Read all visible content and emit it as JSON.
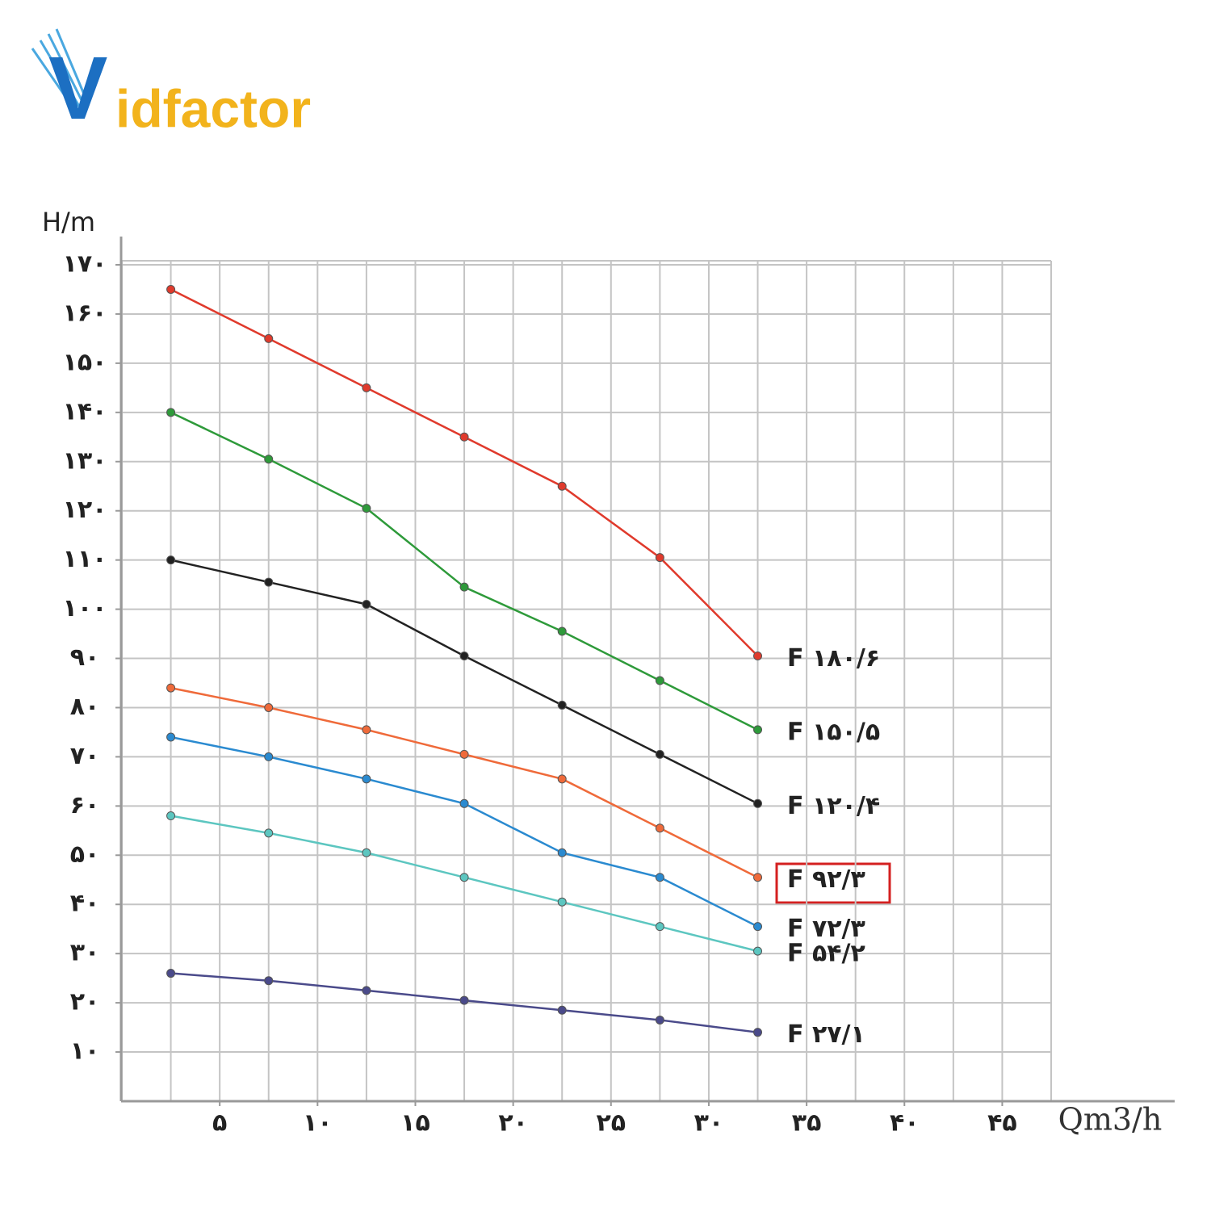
{
  "logo": {
    "mark": "V",
    "text": "idfactor"
  },
  "chart_data": {
    "type": "line",
    "y_label": "H/m",
    "x_label": "Qm3/h",
    "xlim": [
      0,
      47.5
    ],
    "ylim": [
      0,
      170
    ],
    "grid": true,
    "xgrid_step": 2.5,
    "xticks": [
      {
        "value": 5,
        "label": "۵"
      },
      {
        "value": 10,
        "label": "۱۰"
      },
      {
        "value": 15,
        "label": "۱۵"
      },
      {
        "value": 20,
        "label": "۲۰"
      },
      {
        "value": 25,
        "label": "۲۵"
      },
      {
        "value": 30,
        "label": "۳۰"
      },
      {
        "value": 35,
        "label": "۳۵"
      },
      {
        "value": 40,
        "label": "۴۰"
      },
      {
        "value": 45,
        "label": "۴۵"
      }
    ],
    "yticks": [
      {
        "value": 10,
        "label": "۱۰"
      },
      {
        "value": 20,
        "label": "۲۰"
      },
      {
        "value": 30,
        "label": "۳۰"
      },
      {
        "value": 40,
        "label": "۴۰"
      },
      {
        "value": 50,
        "label": "۵۰"
      },
      {
        "value": 60,
        "label": "۶۰"
      },
      {
        "value": 70,
        "label": "۷۰"
      },
      {
        "value": 80,
        "label": "۸۰"
      },
      {
        "value": 90,
        "label": "۹۰"
      },
      {
        "value": 100,
        "label": "۱۰۰"
      },
      {
        "value": 110,
        "label": "۱۱۰"
      },
      {
        "value": 120,
        "label": "۱۲۰"
      },
      {
        "value": 130,
        "label": "۱۳۰"
      },
      {
        "value": 140,
        "label": "۱۴۰"
      },
      {
        "value": 150,
        "label": "۱۵۰"
      },
      {
        "value": 160,
        "label": "۱۶۰"
      },
      {
        "value": 170,
        "label": "۱۷۰"
      }
    ],
    "x": [
      2.5,
      7.5,
      12.5,
      17.5,
      22.5,
      27.5,
      32.5
    ],
    "series": [
      {
        "name": "F ۱۸۰/۶",
        "color": "#e03a2c",
        "values": [
          165,
          155,
          145,
          135,
          125,
          110.5,
          90.5
        ]
      },
      {
        "name": "F ۱۵۰/۵",
        "color": "#2e9a3a",
        "values": [
          140,
          130.5,
          120.5,
          104.5,
          95.5,
          85.5,
          75.5
        ]
      },
      {
        "name": "F ۱۲۰/۴",
        "color": "#222222",
        "values": [
          110,
          105.5,
          101,
          90.5,
          80.5,
          70.5,
          60.5
        ]
      },
      {
        "name": "F ۹۲/۳",
        "color": "#ef6a3a",
        "values": [
          84,
          80,
          75.5,
          70.5,
          65.5,
          55.5,
          45.5
        ]
      },
      {
        "name": "F ۷۲/۳",
        "color": "#2a8ad0",
        "values": [
          74,
          70,
          65.5,
          60.5,
          50.5,
          45.5,
          35.5
        ]
      },
      {
        "name": "F ۵۴/۲",
        "color": "#5cc6c0",
        "values": [
          58,
          54.5,
          50.5,
          45.5,
          40.5,
          35.5,
          30.5
        ]
      },
      {
        "name": "F ۲۷/۱",
        "color": "#4a4a8a",
        "values": [
          26,
          24.5,
          22.5,
          20.5,
          18.5,
          16.5,
          14
        ]
      }
    ]
  }
}
